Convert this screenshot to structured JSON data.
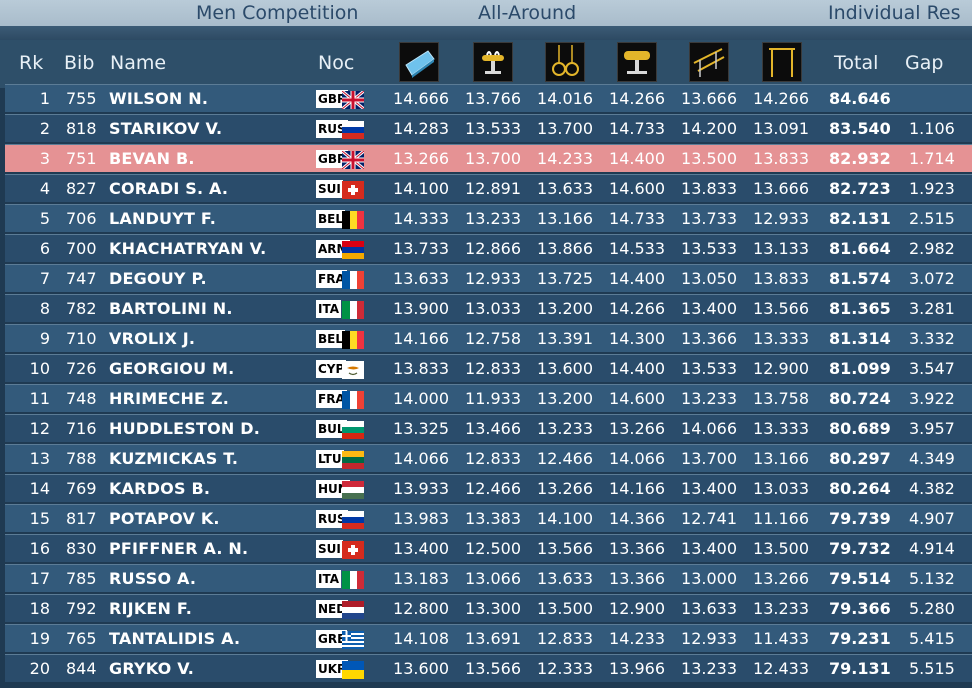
{
  "header_bar": {
    "competition": "Men Competition",
    "round": "All-Around",
    "result_type": "Individual Res"
  },
  "columns": {
    "rank": "Rk",
    "bib": "Bib",
    "name": "Name",
    "noc": "Noc",
    "apparatus_icons": [
      "floor-exercise-icon",
      "pommel-horse-icon",
      "rings-icon",
      "vault-icon",
      "parallel-bars-icon",
      "horizontal-bar-icon"
    ],
    "total": "Total",
    "gap": "Gap"
  },
  "colors": {
    "highlight_row": "#e59294",
    "row_odd": "#335a7b",
    "row_even": "#2a4c6b"
  },
  "rows": [
    {
      "rk": "1",
      "bib": "755",
      "name": "WILSON N.",
      "noc": "GBR",
      "scores": [
        "14.666",
        "13.766",
        "14.016",
        "14.266",
        "13.666",
        "14.266"
      ],
      "total": "84.646",
      "gap": ""
    },
    {
      "rk": "2",
      "bib": "818",
      "name": "STARIKOV V.",
      "noc": "RUS",
      "scores": [
        "14.283",
        "13.533",
        "13.700",
        "14.733",
        "14.200",
        "13.091"
      ],
      "total": "83.540",
      "gap": "1.106"
    },
    {
      "rk": "3",
      "bib": "751",
      "name": "BEVAN B.",
      "noc": "GBR",
      "scores": [
        "13.266",
        "13.700",
        "14.233",
        "14.400",
        "13.500",
        "13.833"
      ],
      "total": "82.932",
      "gap": "1.714",
      "highlight": true
    },
    {
      "rk": "4",
      "bib": "827",
      "name": "CORADI S. A.",
      "noc": "SUI",
      "scores": [
        "14.100",
        "12.891",
        "13.633",
        "14.600",
        "13.833",
        "13.666"
      ],
      "total": "82.723",
      "gap": "1.923"
    },
    {
      "rk": "5",
      "bib": "706",
      "name": "LANDUYT F.",
      "noc": "BEL",
      "scores": [
        "14.333",
        "13.233",
        "13.166",
        "14.733",
        "13.733",
        "12.933"
      ],
      "total": "82.131",
      "gap": "2.515"
    },
    {
      "rk": "6",
      "bib": "700",
      "name": "KHACHATRYAN V.",
      "noc": "ARM",
      "scores": [
        "13.733",
        "12.866",
        "13.866",
        "14.533",
        "13.533",
        "13.133"
      ],
      "total": "81.664",
      "gap": "2.982"
    },
    {
      "rk": "7",
      "bib": "747",
      "name": "DEGOUY P.",
      "noc": "FRA",
      "scores": [
        "13.633",
        "12.933",
        "13.725",
        "14.400",
        "13.050",
        "13.833"
      ],
      "total": "81.574",
      "gap": "3.072"
    },
    {
      "rk": "8",
      "bib": "782",
      "name": "BARTOLINI N.",
      "noc": "ITA",
      "scores": [
        "13.900",
        "13.033",
        "13.200",
        "14.266",
        "13.400",
        "13.566"
      ],
      "total": "81.365",
      "gap": "3.281"
    },
    {
      "rk": "9",
      "bib": "710",
      "name": "VROLIX J.",
      "noc": "BEL",
      "scores": [
        "14.166",
        "12.758",
        "13.391",
        "14.300",
        "13.366",
        "13.333"
      ],
      "total": "81.314",
      "gap": "3.332"
    },
    {
      "rk": "10",
      "bib": "726",
      "name": "GEORGIOU M.",
      "noc": "CYP",
      "scores": [
        "13.833",
        "12.833",
        "13.600",
        "14.400",
        "13.533",
        "12.900"
      ],
      "total": "81.099",
      "gap": "3.547"
    },
    {
      "rk": "11",
      "bib": "748",
      "name": "HRIMECHE Z.",
      "noc": "FRA",
      "scores": [
        "14.000",
        "11.933",
        "13.200",
        "14.600",
        "13.233",
        "13.758"
      ],
      "total": "80.724",
      "gap": "3.922"
    },
    {
      "rk": "12",
      "bib": "716",
      "name": "HUDDLESTON D.",
      "noc": "BUL",
      "scores": [
        "13.325",
        "13.466",
        "13.233",
        "13.266",
        "14.066",
        "13.333"
      ],
      "total": "80.689",
      "gap": "3.957"
    },
    {
      "rk": "13",
      "bib": "788",
      "name": "KUZMICKAS T.",
      "noc": "LTU",
      "scores": [
        "14.066",
        "12.833",
        "12.466",
        "14.066",
        "13.700",
        "13.166"
      ],
      "total": "80.297",
      "gap": "4.349"
    },
    {
      "rk": "14",
      "bib": "769",
      "name": "KARDOS B.",
      "noc": "HUN",
      "scores": [
        "13.933",
        "12.466",
        "13.266",
        "14.166",
        "13.400",
        "13.033"
      ],
      "total": "80.264",
      "gap": "4.382"
    },
    {
      "rk": "15",
      "bib": "817",
      "name": "POTAPOV K.",
      "noc": "RUS",
      "scores": [
        "13.983",
        "13.383",
        "14.100",
        "14.366",
        "12.741",
        "11.166"
      ],
      "total": "79.739",
      "gap": "4.907"
    },
    {
      "rk": "16",
      "bib": "830",
      "name": "PFIFFNER A. N.",
      "noc": "SUI",
      "scores": [
        "13.400",
        "12.500",
        "13.566",
        "13.366",
        "13.400",
        "13.500"
      ],
      "total": "79.732",
      "gap": "4.914"
    },
    {
      "rk": "17",
      "bib": "785",
      "name": "RUSSO A.",
      "noc": "ITA",
      "scores": [
        "13.183",
        "13.066",
        "13.633",
        "13.366",
        "13.000",
        "13.266"
      ],
      "total": "79.514",
      "gap": "5.132"
    },
    {
      "rk": "18",
      "bib": "792",
      "name": "RIJKEN F.",
      "noc": "NED",
      "scores": [
        "12.800",
        "13.300",
        "13.500",
        "12.900",
        "13.633",
        "13.233"
      ],
      "total": "79.366",
      "gap": "5.280"
    },
    {
      "rk": "19",
      "bib": "765",
      "name": "TANTALIDIS A.",
      "noc": "GRE",
      "scores": [
        "14.108",
        "13.691",
        "12.833",
        "14.233",
        "12.933",
        "11.433"
      ],
      "total": "79.231",
      "gap": "5.415"
    },
    {
      "rk": "20",
      "bib": "844",
      "name": "GRYKO V.",
      "noc": "UKR",
      "scores": [
        "13.600",
        "13.566",
        "12.333",
        "13.966",
        "13.233",
        "12.433"
      ],
      "total": "79.131",
      "gap": "5.515"
    }
  ]
}
